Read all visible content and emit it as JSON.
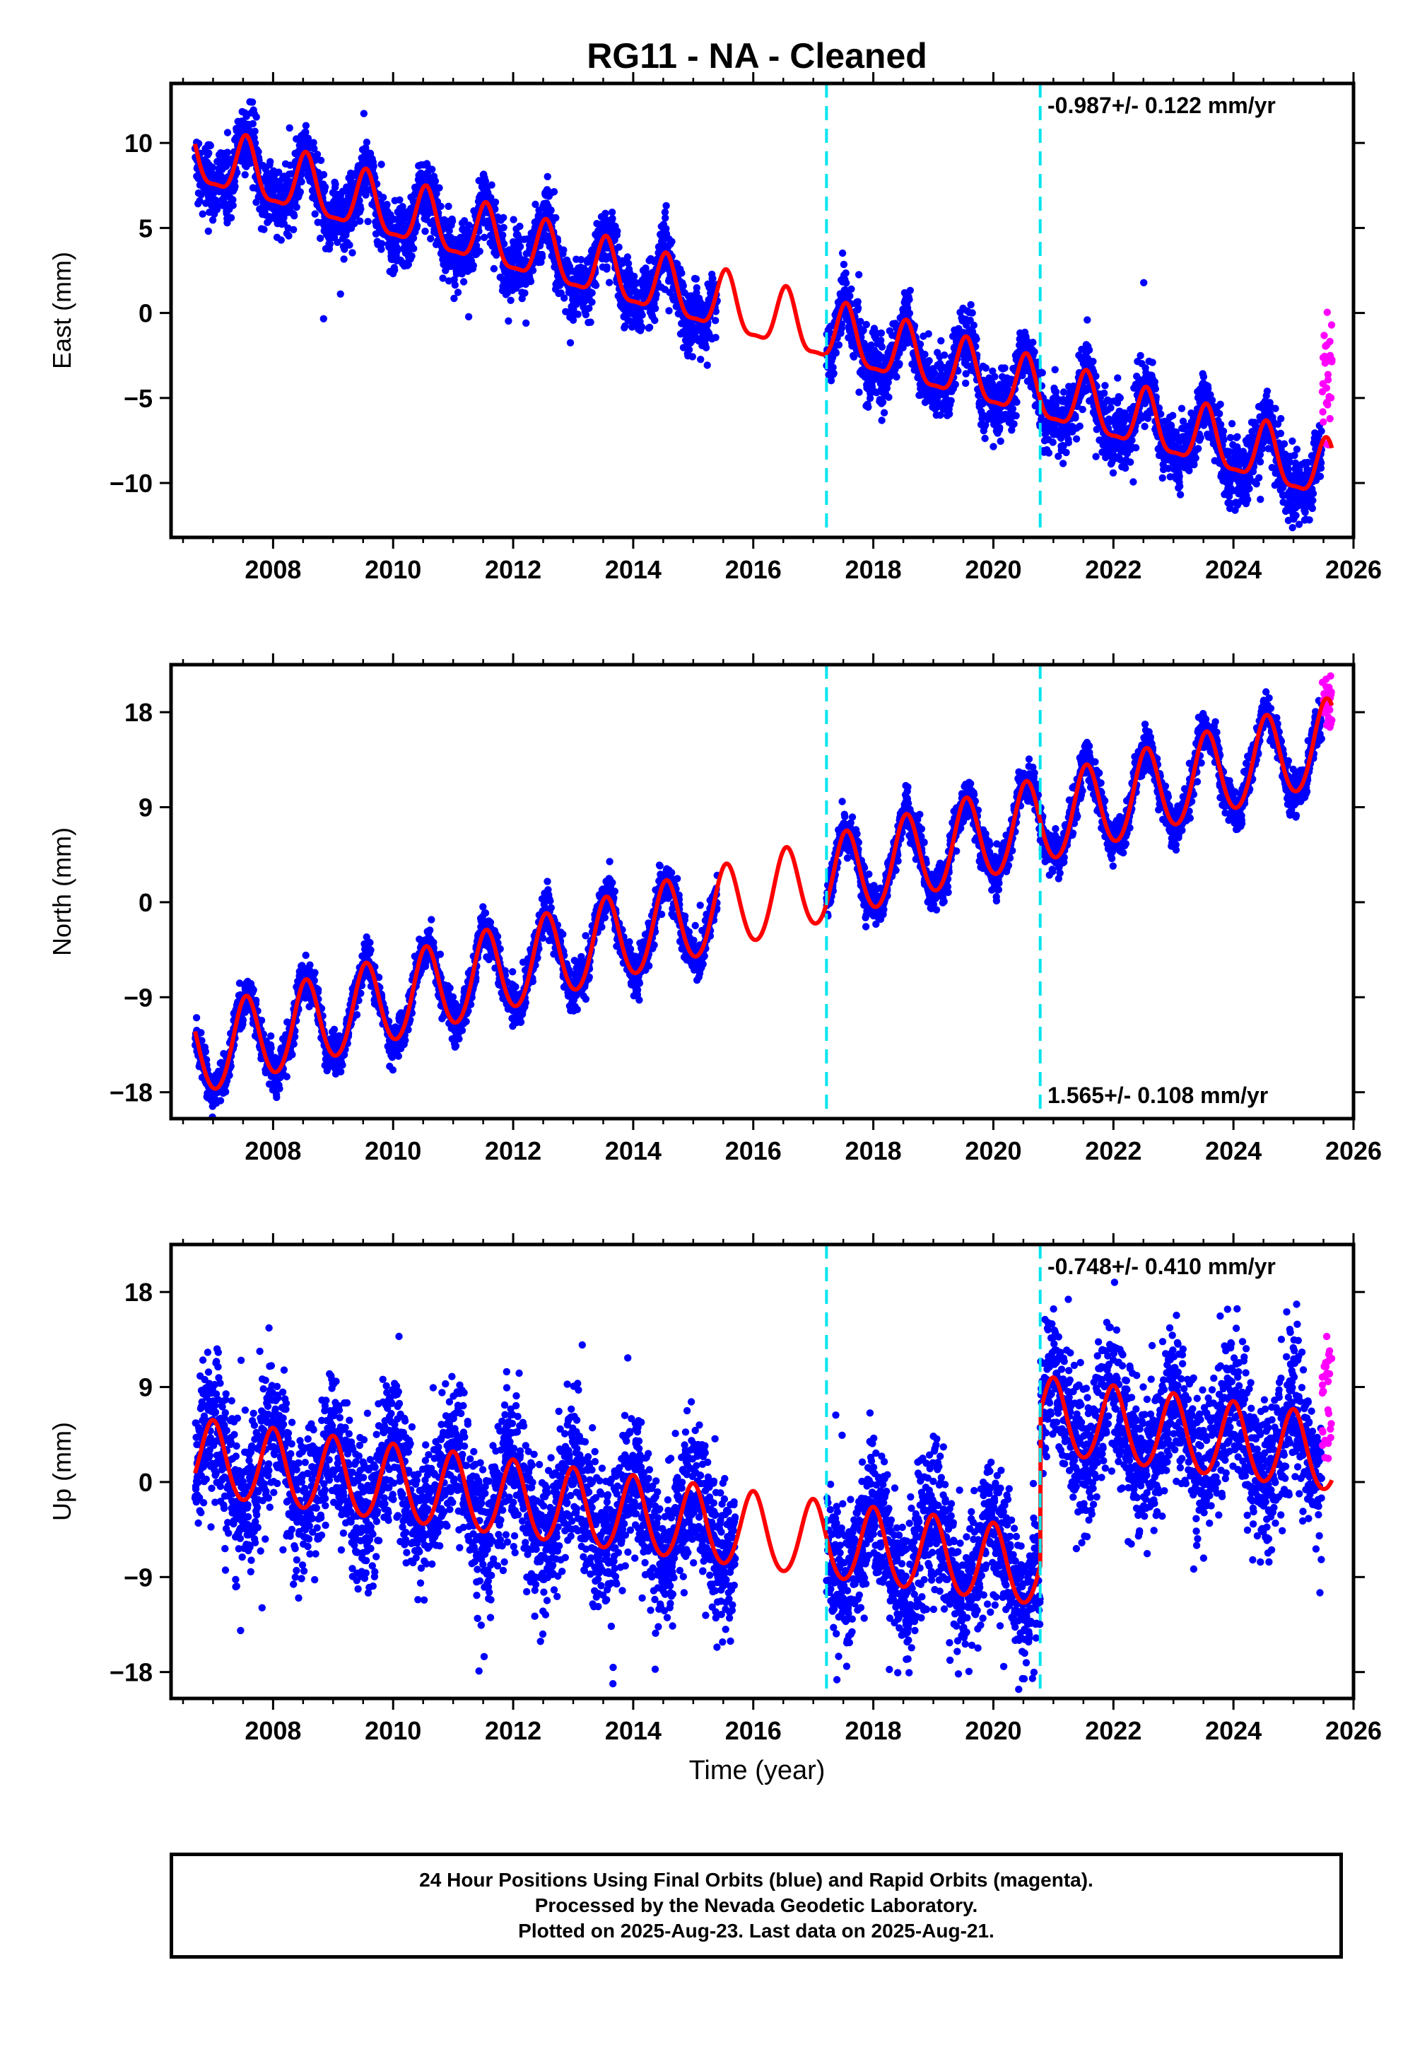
{
  "title": "RG11  - NA - Cleaned",
  "x_axis_label": "Time (year)",
  "footer": {
    "line1": "24 Hour Positions Using Final Orbits (blue) and Rapid Orbits (magenta).",
    "line2": "Processed by the Nevada Geodetic Laboratory.",
    "line3": "Plotted on 2025-Aug-23. Last data on 2025-Aug-21."
  },
  "colors": {
    "final_orbits": "#0000ff",
    "rapid_orbits": "#ff00ff",
    "model_fit": "#ff0000",
    "equipment_change": "#00e5ee"
  },
  "chart_data": [
    {
      "type": "scatter",
      "component": "east",
      "ylabel": "East (mm)",
      "rate_text": "-0.987+/- 0.122 mm/yr",
      "rate_position": "top-right",
      "xlim": [
        2006.3,
        2026.0
      ],
      "ylim": [
        -13.2,
        13.5
      ],
      "x_ticks": [
        2008,
        2010,
        2012,
        2014,
        2016,
        2018,
        2020,
        2022,
        2024,
        2026
      ],
      "y_ticks": [
        -10,
        -5,
        0,
        5,
        10
      ],
      "y_tick_labels": [
        "−10",
        "−5",
        "0",
        "5",
        "10"
      ],
      "grid": false,
      "vertical_lines": [
        2017.22,
        2020.78
      ],
      "data_gap": [
        2015.4,
        2017.22
      ],
      "model": {
        "offset": 9.1,
        "start": 2006.7,
        "rate": -0.987,
        "annual_amplitude": 1.7,
        "annual_phase_peak": 0.55,
        "semiannual_amplitude": 0.5,
        "steps": []
      },
      "noise_mm": 0.9,
      "rapid_points": {
        "x_range": [
          2025.48,
          2025.64
        ],
        "y_range": [
          -7.8,
          0.2
        ]
      }
    },
    {
      "type": "scatter",
      "component": "north",
      "ylabel": "North (mm)",
      "rate_text": "1.565+/- 0.108 mm/yr",
      "rate_position": "bottom-right",
      "xlim": [
        2006.3,
        2026.0
      ],
      "ylim": [
        -20.5,
        22.5
      ],
      "x_ticks": [
        2008,
        2010,
        2012,
        2014,
        2016,
        2018,
        2020,
        2022,
        2024,
        2026
      ],
      "y_ticks": [
        -18,
        -9,
        0,
        9,
        18
      ],
      "y_tick_labels": [
        "−18",
        "−9",
        "0",
        "9",
        "18"
      ],
      "grid": false,
      "vertical_lines": [
        2017.22,
        2020.78
      ],
      "data_gap": [
        2015.4,
        2017.22
      ],
      "model": {
        "offset": -14.5,
        "start": 2006.7,
        "rate": 1.565,
        "annual_amplitude": 4.0,
        "annual_phase_peak": 0.55,
        "semiannual_amplitude": 0.3,
        "steps": []
      },
      "noise_mm": 0.9,
      "rapid_points": {
        "x_range": [
          2025.48,
          2025.64
        ],
        "y_range": [
          16.2,
          21.5
        ]
      }
    },
    {
      "type": "scatter",
      "component": "up",
      "ylabel": "Up (mm)",
      "rate_text": "-0.748+/- 0.410 mm/yr",
      "rate_position": "top-right",
      "xlim": [
        2006.3,
        2026.0
      ],
      "ylim": [
        -20.5,
        22.5
      ],
      "x_ticks": [
        2008,
        2010,
        2012,
        2014,
        2016,
        2018,
        2020,
        2022,
        2024,
        2026
      ],
      "y_ticks": [
        -18,
        -9,
        0,
        9,
        18
      ],
      "y_tick_labels": [
        "−18",
        "−9",
        "0",
        "9",
        "18"
      ],
      "grid": false,
      "vertical_lines": [
        2017.22,
        2020.78
      ],
      "data_gap": [
        2015.7,
        2017.22
      ],
      "model": {
        "offset": 2.2,
        "start": 2006.7,
        "rate": -0.748,
        "annual_amplitude": 3.6,
        "annual_phase_peak": 0.0,
        "semiannual_amplitude": 0.3,
        "steps": [
          {
            "x": 2020.78,
            "dy": 14.5
          }
        ]
      },
      "noise_mm": 3.4,
      "rapid_points": {
        "x_range": [
          2025.48,
          2025.64
        ],
        "y_range": [
          1.5,
          14.5
        ]
      }
    }
  ]
}
